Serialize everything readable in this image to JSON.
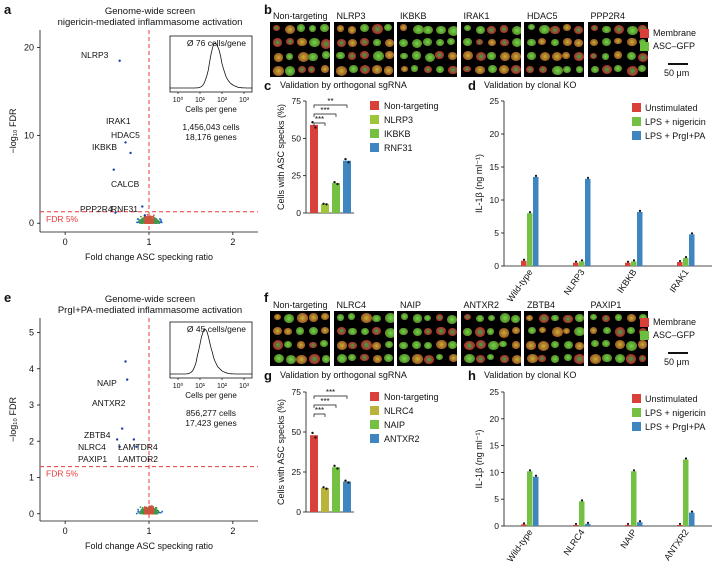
{
  "panel_labels": {
    "a": "a",
    "b": "b",
    "c": "c",
    "d": "d",
    "e": "e",
    "f": "f",
    "g": "g",
    "h": "h"
  },
  "colors": {
    "red": "#d9403a",
    "yellow_green": "#9dc63b",
    "green": "#74c043",
    "blue": "#3f86c0",
    "membrane": "#d9403a",
    "asc": "#6bbf3c",
    "dashed": "#e8393a",
    "volcano_blue": "#1f63d6"
  },
  "screen_top": {
    "title_line1": "Genome-wide screen",
    "title_line2": "nigericin-mediated inflammasome activation",
    "inset_title": "Ø 76 cells/gene",
    "inset_xlabel": "Cells per gene",
    "inset_ticks": [
      "10⁰",
      "10¹",
      "10²",
      "10³"
    ],
    "stats_cells": "1,456,043 cells",
    "stats_genes": "18,176 genes",
    "fdr_label": "FDR 5%",
    "xlabel": "Fold change ASC specking ratio",
    "ylabel": "−log₁₀ FDR",
    "yticks": [
      "0",
      "10",
      "20"
    ],
    "xticks": [
      "0",
      "1",
      "2"
    ],
    "genes": [
      "NLRP3",
      "IRAK1",
      "HDAC5",
      "IKBKB",
      "CALCB",
      "PPP2R4",
      "RNF31"
    ]
  },
  "screen_bottom": {
    "title_line1": "Genome-wide screen",
    "title_line2": "PrgI+PA-mediated inflammasome activation",
    "inset_title": "Ø 45 cells/gene",
    "inset_xlabel": "Cells per gene",
    "inset_ticks": [
      "10⁰",
      "10¹",
      "10²",
      "10³"
    ],
    "stats_cells": "856,277 cells",
    "stats_genes": "17,423 genes",
    "fdr_label": "FDR 5%",
    "xlabel": "Fold change ASC specking ratio",
    "ylabel": "−log₁₀ FDR",
    "yticks": [
      "0",
      "1",
      "2",
      "3",
      "4",
      "5"
    ],
    "xticks": [
      "0",
      "1",
      "2"
    ],
    "genes": [
      "NAIP",
      "ANTXR2",
      "ZBTB4",
      "NLRC4",
      "PAXIP1",
      "LAMTDR4",
      "LAMTOR2"
    ]
  },
  "imaging_top": {
    "labels": [
      "Non-targeting",
      "NLRP3",
      "IKBKB",
      "IRAK1",
      "HDAC5",
      "PPP2R4"
    ],
    "legend": [
      "Membrane",
      "ASC–GFP"
    ],
    "scalebar": "50 μm"
  },
  "imaging_bottom": {
    "labels": [
      "Non-targeting",
      "NLRC4",
      "NAIP",
      "ANTXR2",
      "ZBTB4",
      "PAXIP1"
    ],
    "legend": [
      "Membrane",
      "ASC–GFP"
    ],
    "scalebar": "50 μm"
  },
  "validation_top_sgRNA": {
    "title": "Validation by orthogonal sgRNA",
    "ylabel": "Cells with ASC specks (%)",
    "yticks": [
      "0",
      "25",
      "50",
      "75"
    ],
    "legend": [
      "Non-targeting",
      "NLRP3",
      "IKBKB",
      "RNF31"
    ],
    "sig": [
      "**",
      "***",
      "***"
    ]
  },
  "validation_bottom_sgRNA": {
    "title": "Validation by orthogonal sgRNA",
    "ylabel": "Cells with ASC specks (%)",
    "yticks": [
      "0",
      "25",
      "50",
      "75"
    ],
    "legend": [
      "Non-targeting",
      "NLRC4",
      "NAIP",
      "ANTXR2"
    ],
    "sig": [
      "***",
      "***",
      "***"
    ]
  },
  "validation_top_KO": {
    "title": "Validation by clonal KO",
    "ylabel": "IL-1β (ng ml⁻¹)",
    "yticks": [
      "0",
      "5",
      "10",
      "15",
      "20",
      "25"
    ],
    "legend": [
      "Unstimulated",
      "LPS + nigericin",
      "LPS + PrgI+PA"
    ],
    "categories": [
      "Wild-type",
      "NLRP3",
      "IKBKB",
      "IRAK1"
    ]
  },
  "validation_bottom_KO": {
    "title": "Validation by clonal KO",
    "ylabel": "IL-1β (ng ml⁻¹)",
    "yticks": [
      "0",
      "5",
      "10",
      "15",
      "20",
      "25"
    ],
    "legend": [
      "Unstimulated",
      "LPS + nigericin",
      "LPS + PrgI+PA"
    ],
    "categories": [
      "Wild-type",
      "NLRC4",
      "NAIP",
      "ANTXR2"
    ]
  },
  "chart_data": [
    {
      "type": "scatter",
      "panel": "a",
      "xlabel": "Fold change ASC specking ratio",
      "ylabel": "−log10 FDR",
      "xlim": [
        -0.3,
        2.3
      ],
      "ylim": [
        -1,
        22
      ],
      "fdr_threshold": 1.3,
      "x_reference": 1,
      "highlighted": [
        {
          "label": "NLRP3",
          "x": 0.65,
          "y": 18.5
        },
        {
          "label": "IRAK1",
          "x": 0.72,
          "y": 9.2
        },
        {
          "label": "HDAC5",
          "x": 0.78,
          "y": 8.0
        },
        {
          "label": "IKBKB",
          "x": 0.58,
          "y": 6.1
        },
        {
          "label": "CALCB",
          "x": 0.92,
          "y": 1.9
        },
        {
          "label": "PPP2R4",
          "x": 0.6,
          "y": 1.2
        },
        {
          "label": "RNF31",
          "x": 0.95,
          "y": 0.9
        }
      ]
    },
    {
      "type": "scatter",
      "panel": "e",
      "xlabel": "Fold change ASC specking ratio",
      "ylabel": "−log10 FDR",
      "xlim": [
        -0.3,
        2.3
      ],
      "ylim": [
        -0.2,
        5.4
      ],
      "fdr_threshold": 1.3,
      "x_reference": 1,
      "highlighted": [
        {
          "label": "NAIP",
          "x": 0.72,
          "y": 4.2
        },
        {
          "label": "ANTXR2",
          "x": 0.74,
          "y": 3.7
        },
        {
          "label": "ZBTB4",
          "x": 0.68,
          "y": 2.35
        },
        {
          "label": "NLRC4",
          "x": 0.62,
          "y": 2.05
        },
        {
          "label": "PAXIP1",
          "x": 0.65,
          "y": 1.85
        },
        {
          "label": "LAMTDR4",
          "x": 0.82,
          "y": 2.05
        },
        {
          "label": "LAMTOR2",
          "x": 0.85,
          "y": 1.85
        }
      ]
    },
    {
      "type": "bar",
      "panel": "c",
      "ylabel": "Cells with ASC specks (%)",
      "ylim": [
        0,
        75
      ],
      "categories": [
        "Non-targeting",
        "NLRP3",
        "IKBKB",
        "RNF31"
      ],
      "values": [
        59,
        6,
        20,
        35
      ]
    },
    {
      "type": "bar",
      "panel": "g",
      "ylabel": "Cells with ASC specks (%)",
      "ylim": [
        0,
        75
      ],
      "categories": [
        "Non-targeting",
        "NLRC4",
        "NAIP",
        "ANTXR2"
      ],
      "values": [
        48,
        15,
        28,
        19
      ]
    },
    {
      "type": "bar",
      "panel": "d",
      "ylabel": "IL-1β (ng ml⁻¹)",
      "ylim": [
        0,
        25
      ],
      "categories": [
        "Wild-type",
        "NLRP3",
        "IKBKB",
        "IRAK1"
      ],
      "series": [
        {
          "name": "Unstimulated",
          "values": [
            0.8,
            0.5,
            0.5,
            0.6
          ]
        },
        {
          "name": "LPS + nigericin",
          "values": [
            8,
            0.7,
            0.7,
            1.2
          ]
        },
        {
          "name": "LPS + PrgI+PA",
          "values": [
            13.5,
            13.2,
            8.2,
            4.8
          ]
        }
      ]
    },
    {
      "type": "bar",
      "panel": "h",
      "ylabel": "IL-1β (ng ml⁻¹)",
      "ylim": [
        0,
        25
      ],
      "categories": [
        "Wild-type",
        "NLRC4",
        "NAIP",
        "ANTXR2"
      ],
      "series": [
        {
          "name": "Unstimulated",
          "values": [
            0.3,
            0.2,
            0.2,
            0.2
          ]
        },
        {
          "name": "LPS + nigericin",
          "values": [
            10.2,
            4.6,
            10.2,
            12.4
          ]
        },
        {
          "name": "LPS + PrgI+PA",
          "values": [
            9.2,
            0.4,
            0.7,
            2.5
          ]
        }
      ]
    }
  ]
}
